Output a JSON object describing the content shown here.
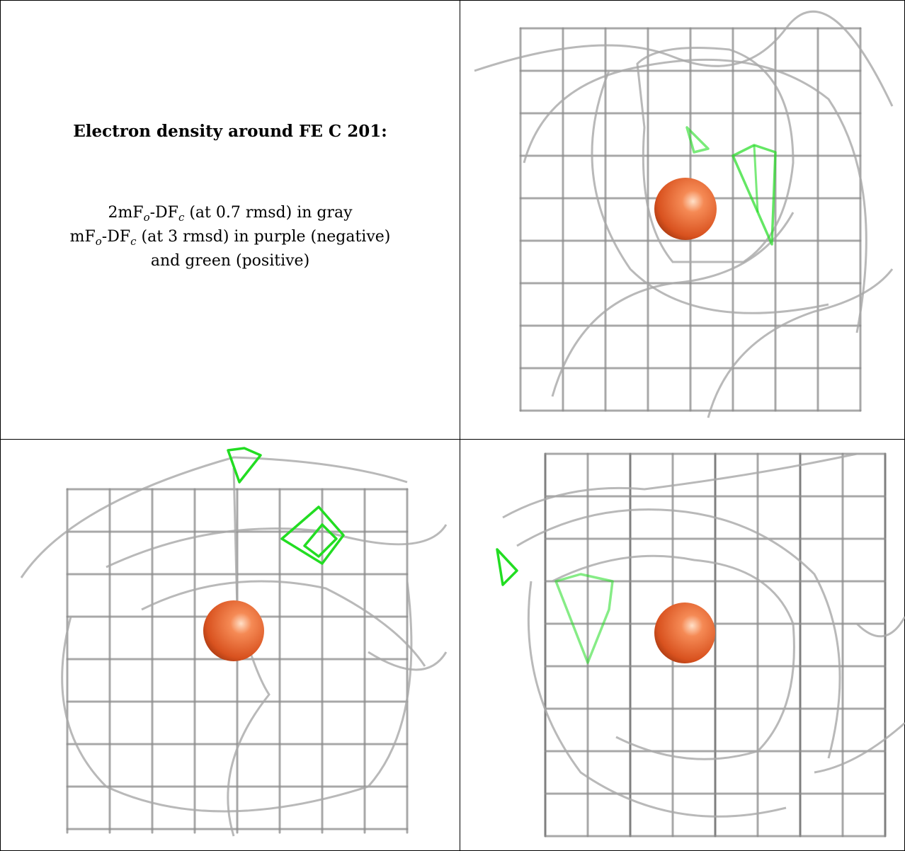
{
  "figure": {
    "title": "Electron density around FE C 201:",
    "legend": {
      "line1": {
        "pre": "2mF",
        "sub1": "o",
        "mid": "-DF",
        "sub2": "c",
        "post": " (at 0.7 rmsd) in gray"
      },
      "line2": {
        "pre": "mF",
        "sub1": "o",
        "mid": "-DF",
        "sub2": "c",
        "post": " (at 3 rmsd) in purple (negative)"
      },
      "line3": "and green (positive)"
    },
    "colors": {
      "mesh_gray": "#8c8c8c",
      "mesh_dark": "#555555",
      "positive_green": "#22dd22",
      "atom_orange": "#e8643a",
      "border": "#000000"
    },
    "panels": [
      {
        "name": "view-1"
      },
      {
        "name": "view-2"
      },
      {
        "name": "view-3"
      }
    ]
  }
}
